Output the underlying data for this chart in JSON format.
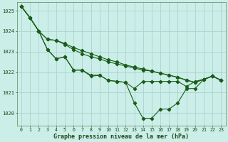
{
  "background_color": "#cceee8",
  "grid_color": "#aad4ce",
  "line_color": "#1a5c1a",
  "xlabel": "Graphe pression niveau de la mer (hPa)",
  "xlim": [
    -0.5,
    23.5
  ],
  "ylim": [
    1019.4,
    1025.4
  ],
  "yticks": [
    1020,
    1021,
    1022,
    1023,
    1024,
    1025
  ],
  "xticks": [
    0,
    1,
    2,
    3,
    4,
    5,
    6,
    7,
    8,
    9,
    10,
    11,
    12,
    13,
    14,
    15,
    16,
    17,
    18,
    19,
    20,
    21,
    22,
    23
  ],
  "series_main": [
    1025.2,
    1024.65,
    1024.0,
    1023.1,
    1022.65,
    1022.75,
    1022.1,
    1022.1,
    1021.8,
    1021.85,
    1021.6,
    1021.55,
    1021.5,
    1020.5,
    1019.75,
    1019.75,
    1020.2,
    1020.2,
    1020.5,
    1021.2,
    1021.2,
    1021.65,
    1021.8,
    1021.6
  ],
  "series_mid": [
    1025.2,
    1024.65,
    1024.0,
    1023.1,
    1022.65,
    1022.75,
    1022.1,
    1022.1,
    1021.85,
    1021.85,
    1021.6,
    1021.55,
    1021.5,
    1021.2,
    1021.55,
    1021.55,
    1021.55,
    1021.55,
    1021.55,
    1021.3,
    1021.55,
    1021.65,
    1021.8,
    1021.6
  ],
  "series_upper2": [
    1025.2,
    1024.65,
    1024.0,
    1023.6,
    1023.55,
    1023.35,
    1023.1,
    1022.9,
    1022.75,
    1022.65,
    1022.5,
    1022.4,
    1022.3,
    1022.2,
    1022.1,
    1022.05,
    1021.95,
    1021.85,
    1021.75,
    1021.6,
    1021.5,
    1021.65,
    1021.8,
    1021.6
  ],
  "series_upper1": [
    1025.2,
    1024.65,
    1024.0,
    1023.6,
    1023.55,
    1023.4,
    1023.2,
    1023.05,
    1022.9,
    1022.75,
    1022.6,
    1022.5,
    1022.35,
    1022.25,
    1022.15,
    1022.05,
    1021.95,
    1021.85,
    1021.75,
    1021.62,
    1021.5,
    1021.65,
    1021.82,
    1021.6
  ]
}
